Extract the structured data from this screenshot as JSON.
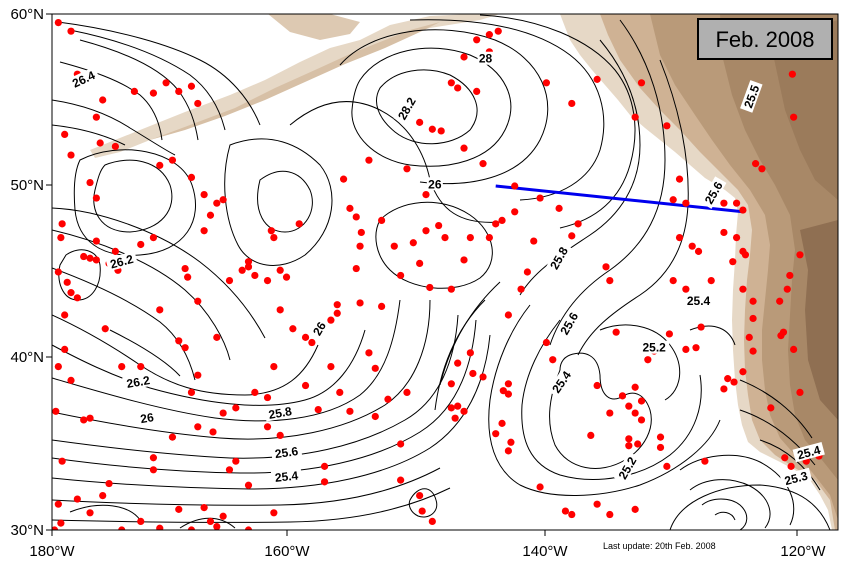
{
  "title_box": {
    "text": "Feb. 2008"
  },
  "axes": {
    "x_ticks": [
      "180°W",
      "160°W",
      "140°W",
      "120°W"
    ],
    "y_ticks": [
      "60°N",
      "50°N",
      "40°N",
      "30°N"
    ],
    "lon_range": [
      -180,
      -118
    ],
    "lat_range": [
      30,
      60
    ]
  },
  "footer": {
    "update_text": "Last update: 20th Feb. 2008"
  },
  "section_line": {
    "color": "#0000ee",
    "start": [
      -145,
      50
    ],
    "end": [
      -125.5,
      48.5
    ]
  },
  "colors": {
    "float_dot": "#ff0000",
    "contour": "#000000",
    "land_light": "#e6d8c6",
    "land_mid": "#cfb294",
    "land_dark": "#a88867",
    "section": "#0000ee"
  },
  "contour_labels": [
    {
      "text": "26.4",
      "lon": -177.5,
      "lat": 56.2,
      "rot": -25
    },
    {
      "text": "26.2",
      "lon": -174.5,
      "lat": 45.6,
      "rot": -15
    },
    {
      "text": "26.2",
      "lon": -173.2,
      "lat": 38.6,
      "rot": -10
    },
    {
      "text": "26",
      "lon": -172.5,
      "lat": 36.5,
      "rot": -10
    },
    {
      "text": "28.2",
      "lon": -152.0,
      "lat": 54.5,
      "rot": -60
    },
    {
      "text": "28",
      "lon": -145.8,
      "lat": 57.4,
      "rot": 0
    },
    {
      "text": "26",
      "lon": -149.8,
      "lat": 50.1,
      "rot": 0
    },
    {
      "text": "26",
      "lon": -158.9,
      "lat": 41.7,
      "rot": -60
    },
    {
      "text": "25.8",
      "lon": -140.0,
      "lat": 45.8,
      "rot": -60
    },
    {
      "text": "25.6",
      "lon": -139.2,
      "lat": 42.0,
      "rot": -60
    },
    {
      "text": "25.4",
      "lon": -139.8,
      "lat": 38.6,
      "rot": -55
    },
    {
      "text": "25.8",
      "lon": -162.0,
      "lat": 36.8,
      "rot": -10
    },
    {
      "text": "25.6",
      "lon": -161.5,
      "lat": 34.5,
      "rot": -8
    },
    {
      "text": "25.4",
      "lon": -161.5,
      "lat": 33.1,
      "rot": -6
    },
    {
      "text": "25.5",
      "lon": -124.8,
      "lat": 55.2,
      "rot": -70
    },
    {
      "text": "25.6",
      "lon": -127.8,
      "lat": 49.6,
      "rot": -60
    },
    {
      "text": "25.4",
      "lon": -129.0,
      "lat": 43.3,
      "rot": 0
    },
    {
      "text": "25.2",
      "lon": -132.5,
      "lat": 40.6,
      "rot": 0
    },
    {
      "text": "25.2",
      "lon": -134.6,
      "lat": 33.6,
      "rot": -60
    },
    {
      "text": "25.4",
      "lon": -120.3,
      "lat": 34.5,
      "rot": -15
    },
    {
      "text": "25.3",
      "lon": -121.3,
      "lat": 33.0,
      "rot": -15
    }
  ],
  "floats": [
    [
      -179.5,
      59.5
    ],
    [
      -178.5,
      59
    ],
    [
      -178,
      56.5
    ],
    [
      -177,
      56.5
    ],
    [
      -179,
      53
    ],
    [
      -178.5,
      51.8
    ],
    [
      -176,
      55
    ],
    [
      -176.5,
      54
    ],
    [
      -173.5,
      55.5
    ],
    [
      -172,
      55.4
    ],
    [
      -171,
      56
    ],
    [
      -170,
      55.5
    ],
    [
      -169,
      55.8
    ],
    [
      -168.5,
      54.8
    ],
    [
      -171.5,
      51.2
    ],
    [
      -170.5,
      51.5
    ],
    [
      -169,
      50.5
    ],
    [
      -168,
      49.5
    ],
    [
      -177,
      50.2
    ],
    [
      -176.5,
      49.3
    ],
    [
      -176.2,
      52.5
    ],
    [
      -175,
      52.3
    ],
    [
      -179.3,
      47
    ],
    [
      -179.5,
      45
    ],
    [
      -178.8,
      44.4
    ],
    [
      -178.5,
      43.8
    ],
    [
      -178,
      43.5
    ],
    [
      -179,
      42.5
    ],
    [
      -177,
      45.8
    ],
    [
      -176.5,
      45.7
    ],
    [
      -175.5,
      45.5
    ],
    [
      -175,
      46.2
    ],
    [
      -174.5,
      45.6
    ],
    [
      -173,
      46.6
    ],
    [
      -172,
      47
    ],
    [
      -169.5,
      45.2
    ],
    [
      -169.3,
      44.7
    ],
    [
      -167,
      49
    ],
    [
      -167.5,
      48.3
    ],
    [
      -166.5,
      49.2
    ],
    [
      -168,
      47.4
    ],
    [
      -165,
      45.1
    ],
    [
      -164.5,
      45.3
    ],
    [
      -164,
      44.8
    ],
    [
      -162,
      45.1
    ],
    [
      -161.5,
      44.7
    ],
    [
      -162,
      42.8
    ],
    [
      -161,
      41.7
    ],
    [
      -160,
      41.2
    ],
    [
      -159.5,
      40.9
    ],
    [
      -162.5,
      47
    ],
    [
      -162.7,
      47.4
    ],
    [
      -160.5,
      47.8
    ],
    [
      -158,
      42.2
    ],
    [
      -157.5,
      42.6
    ],
    [
      -157,
      50.4
    ],
    [
      -156.5,
      48.7
    ],
    [
      -156,
      48.2
    ],
    [
      -155,
      51.5
    ],
    [
      -152,
      51
    ],
    [
      -150.5,
      49.5
    ],
    [
      -155.6,
      47.3
    ],
    [
      -155.7,
      46.5
    ],
    [
      -156,
      45.2
    ],
    [
      -155.7,
      43.2
    ],
    [
      -154,
      43
    ],
    [
      -152.5,
      44.8
    ],
    [
      -151.5,
      46.7
    ],
    [
      -150.5,
      47.4
    ],
    [
      -149.5,
      47.7
    ],
    [
      -150.2,
      44.1
    ],
    [
      -148.5,
      44
    ],
    [
      -145.5,
      47
    ],
    [
      -145,
      47.8
    ],
    [
      -144.5,
      48
    ],
    [
      -143.5,
      48.5
    ],
    [
      -141.5,
      49.3
    ],
    [
      -140,
      48.7
    ],
    [
      -139,
      47.1
    ],
    [
      -138.5,
      47.8
    ],
    [
      -147.5,
      57.5
    ],
    [
      -146.5,
      58.5
    ],
    [
      -145.5,
      58.8
    ],
    [
      -144.8,
      59
    ],
    [
      -145.5,
      57.8
    ],
    [
      -148.5,
      56
    ],
    [
      -148,
      55.7
    ],
    [
      -146.5,
      55.5
    ],
    [
      -151,
      53.7
    ],
    [
      -150,
      53.3
    ],
    [
      -149.3,
      53.2
    ],
    [
      -147.5,
      52.2
    ],
    [
      -146,
      51.3
    ],
    [
      -143.5,
      50
    ],
    [
      -141,
      56
    ],
    [
      -139,
      54.8
    ],
    [
      -137,
      56.2
    ],
    [
      -133.5,
      56
    ],
    [
      -134,
      54
    ],
    [
      -131.5,
      53.5
    ],
    [
      -130.5,
      50.4
    ],
    [
      -131,
      49.2
    ],
    [
      -130,
      49
    ],
    [
      -128,
      49.3
    ],
    [
      -127,
      49
    ],
    [
      -126,
      49
    ],
    [
      -125.5,
      48.6
    ],
    [
      -124.5,
      51.3
    ],
    [
      -124,
      51
    ],
    [
      -130.5,
      47
    ],
    [
      -129.5,
      46.5
    ],
    [
      -129,
      46.2
    ],
    [
      -127,
      47.3
    ],
    [
      -126,
      47
    ],
    [
      -125.3,
      46
    ],
    [
      -121.6,
      56.5
    ],
    [
      -121.5,
      54
    ],
    [
      -125.5,
      44
    ],
    [
      -124.7,
      42.3
    ],
    [
      -122.6,
      43.3
    ],
    [
      -122.3,
      41.5
    ],
    [
      -125,
      41.2
    ],
    [
      -126.2,
      38.6
    ],
    [
      -126.7,
      38.8
    ],
    [
      -127,
      38.2
    ],
    [
      -128.8,
      41.8
    ],
    [
      -129.2,
      40.6
    ],
    [
      -130,
      40.5
    ],
    [
      -132.5,
      40.4
    ],
    [
      -133,
      39.9
    ],
    [
      -131.3,
      41.4
    ],
    [
      -134,
      38.3
    ],
    [
      -133.5,
      37.5
    ],
    [
      -133.5,
      36.4
    ],
    [
      -134,
      36.8
    ],
    [
      -134.5,
      37.2
    ],
    [
      -135,
      37.8
    ],
    [
      -137,
      38.4
    ],
    [
      -137.5,
      35.5
    ],
    [
      -136,
      36.8
    ],
    [
      -132,
      34.8
    ],
    [
      -134.5,
      35.3
    ],
    [
      -133.8,
      35
    ],
    [
      -132,
      35.4
    ],
    [
      -131.5,
      33.7
    ],
    [
      -134,
      31.2
    ],
    [
      -136,
      30.9
    ],
    [
      -137,
      31.5
    ],
    [
      -134.5,
      34.9
    ],
    [
      -128.5,
      34
    ],
    [
      -123.3,
      37.1
    ],
    [
      -122.2,
      34.2
    ],
    [
      -121.7,
      33.7
    ],
    [
      -125.5,
      39.2
    ],
    [
      -124.7,
      40.4
    ],
    [
      -124.7,
      43.3
    ],
    [
      -125.5,
      46.2
    ],
    [
      -130,
      44
    ],
    [
      -131,
      44.5
    ],
    [
      -128,
      44.5
    ],
    [
      -126.3,
      45.6
    ],
    [
      -121,
      46
    ],
    [
      -121.8,
      44.8
    ],
    [
      -122,
      44
    ],
    [
      -135.5,
      41.5
    ],
    [
      -136,
      44.5
    ],
    [
      -136.3,
      45.3
    ],
    [
      -141,
      40.9
    ],
    [
      -140.5,
      39.9
    ],
    [
      -144,
      38.5
    ],
    [
      -144.4,
      38.1
    ],
    [
      -144,
      37.9
    ],
    [
      -146,
      38.9
    ],
    [
      -146.8,
      39.1
    ],
    [
      -147,
      40.3
    ],
    [
      -148,
      39.7
    ],
    [
      -148.5,
      38.5
    ],
    [
      -144.5,
      36.2
    ],
    [
      -145,
      35.6
    ],
    [
      -143.8,
      35.1
    ],
    [
      -144,
      34.6
    ],
    [
      -141.5,
      32.5
    ],
    [
      -139.5,
      31.1
    ],
    [
      -139,
      30.9
    ],
    [
      -148,
      37.2
    ],
    [
      -148.5,
      37.1
    ],
    [
      -147.5,
      36.9
    ],
    [
      -148.2,
      36.5
    ],
    [
      -151,
      32
    ],
    [
      -150.8,
      31.1
    ],
    [
      -150,
      30.5
    ],
    [
      -152.5,
      35
    ],
    [
      -152.5,
      32.9
    ],
    [
      -154.5,
      36.6
    ],
    [
      -155,
      40.3
    ],
    [
      -156.5,
      36.9
    ],
    [
      -159,
      37
    ],
    [
      -158.5,
      33.7
    ],
    [
      -161.5,
      34.5
    ],
    [
      -162,
      35.5
    ],
    [
      -163,
      36
    ],
    [
      -164,
      38
    ],
    [
      -162.5,
      39.5
    ],
    [
      -165.5,
      34
    ],
    [
      -166,
      33.5
    ],
    [
      -164.5,
      32.6
    ],
    [
      -167.5,
      30.5
    ],
    [
      -169,
      30
    ],
    [
      -171.5,
      30.1
    ],
    [
      -173,
      30.5
    ],
    [
      -174.5,
      30
    ],
    [
      -176,
      32
    ],
    [
      -178,
      31.8
    ],
    [
      -179.5,
      31.5
    ],
    [
      -179.3,
      30.4
    ],
    [
      -179.8,
      30
    ],
    [
      -177,
      31
    ],
    [
      -172,
      33.5
    ],
    [
      -172,
      34.2
    ],
    [
      -170.5,
      35.4
    ],
    [
      -168.5,
      36
    ],
    [
      -167.3,
      35.7
    ],
    [
      -166.5,
      36.8
    ],
    [
      -165.5,
      37.1
    ],
    [
      -163,
      37.7
    ],
    [
      -169,
      38
    ],
    [
      -170,
      41
    ],
    [
      -169.5,
      40.6
    ],
    [
      -167,
      41.2
    ],
    [
      -168.5,
      39
    ],
    [
      -171.5,
      42.8
    ],
    [
      -173,
      39.5
    ],
    [
      -174.5,
      39.5
    ],
    [
      -175.8,
      41.7
    ],
    [
      -177,
      36.5
    ],
    [
      -177.5,
      36.4
    ],
    [
      -179.7,
      36.9
    ],
    [
      -179,
      40.5
    ],
    [
      -179.5,
      39.5
    ],
    [
      -178.5,
      38.7
    ],
    [
      -176.5,
      46.8
    ],
    [
      -177.5,
      45.9
    ],
    [
      -174.8,
      45.1
    ],
    [
      -179.2,
      47.8
    ],
    [
      -166,
      44.5
    ],
    [
      -164.5,
      45.6
    ],
    [
      -163,
      44.5
    ],
    [
      -168.5,
      43.3
    ],
    [
      -157.5,
      43.1
    ],
    [
      -154,
      48
    ],
    [
      -153,
      46.5
    ],
    [
      -151,
      45.5
    ],
    [
      -149,
      47
    ],
    [
      -147,
      47
    ],
    [
      -147.5,
      45.7
    ],
    [
      -143,
      44
    ],
    [
      -142.5,
      45
    ],
    [
      -142,
      46.8
    ],
    [
      -144,
      42.5
    ],
    [
      -158,
      39.5
    ],
    [
      -157.3,
      38
    ],
    [
      -160,
      38.4
    ],
    [
      -152,
      38
    ],
    [
      -154.5,
      39.4
    ],
    [
      -153.5,
      37.6
    ],
    [
      -158.5,
      32.8
    ],
    [
      -162.5,
      31
    ],
    [
      -164.5,
      30
    ],
    [
      -166.5,
      30.8
    ],
    [
      -167,
      30.2
    ],
    [
      -168,
      31.3
    ],
    [
      -170,
      31.2
    ],
    [
      -175.5,
      32.7
    ],
    [
      -179.2,
      34
    ],
    [
      -121,
      38
    ],
    [
      -121.5,
      40.5
    ],
    [
      -122.5,
      41.3
    ],
    [
      -120.5,
      34
    ],
    [
      -119.5,
      34.3
    ]
  ]
}
